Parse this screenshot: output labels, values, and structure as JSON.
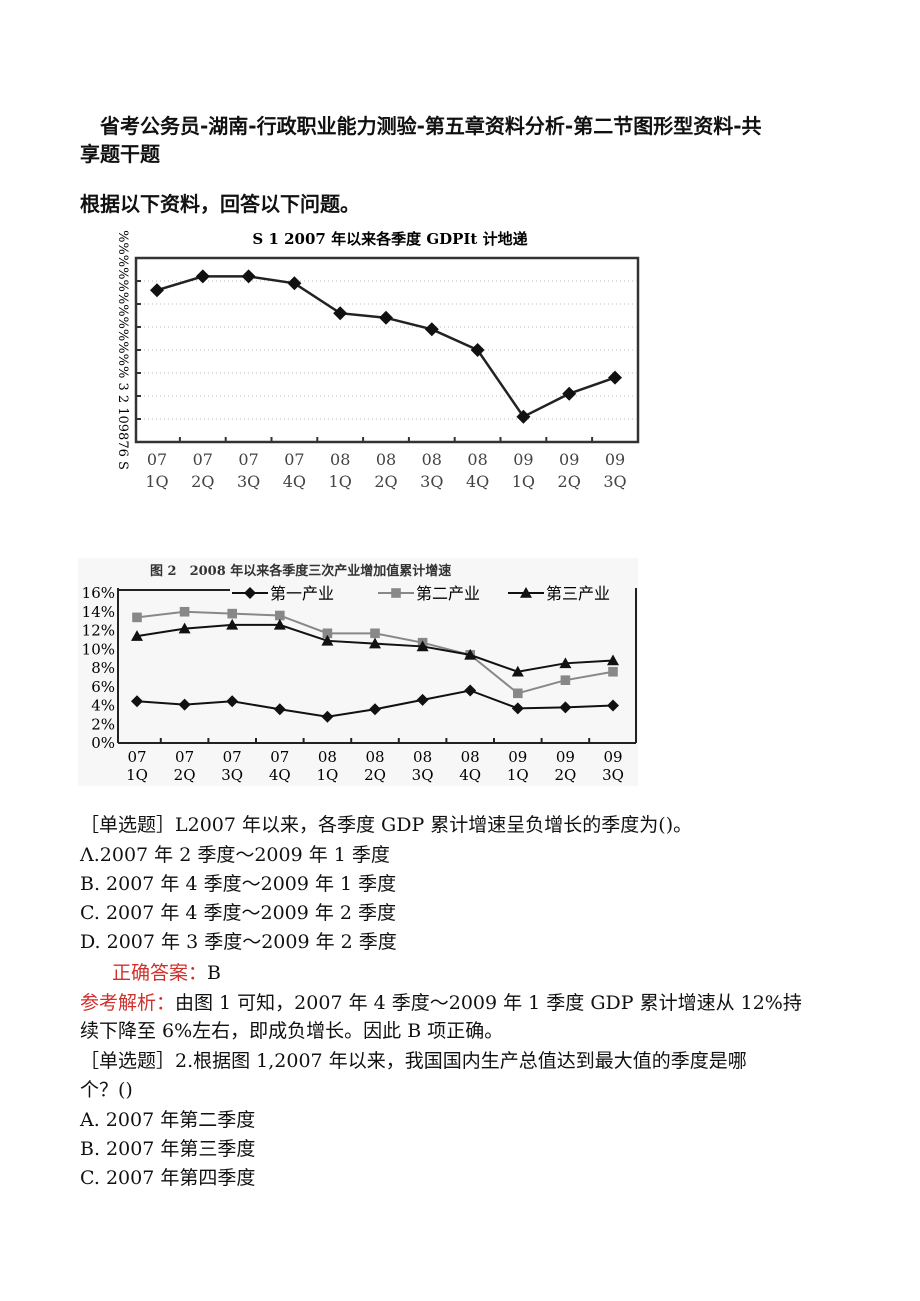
{
  "header": {
    "title_line1": "省考公务员-湖南-行政职业能力测验-第五章资料分析-第二节图形型资料-共",
    "title_line2": "享题干题",
    "intro": "根据以下资料，回答以下问题。"
  },
  "chart_data": [
    {
      "type": "line",
      "title": "S 1 2007 年以来各季度 GDPIt 计地递",
      "ylabel": "%%%%%%%%%%%% 3 2 109876 S",
      "categories": [
        [
          "07",
          "1Q"
        ],
        [
          "07",
          "2Q"
        ],
        [
          "07",
          "3Q"
        ],
        [
          "07",
          "4Q"
        ],
        [
          "08",
          "1Q"
        ],
        [
          "08",
          "2Q"
        ],
        [
          "08",
          "3Q"
        ],
        [
          "08",
          "4Q"
        ],
        [
          "09",
          "1Q"
        ],
        [
          "09",
          "2Q"
        ],
        [
          "09",
          "3Q"
        ]
      ],
      "values": [
        11.6,
        12.2,
        12.2,
        11.9,
        10.6,
        10.4,
        9.9,
        9.0,
        6.1,
        7.1,
        7.8
      ],
      "ylim": [
        5,
        13
      ],
      "grid": "horizontal dotted",
      "marker": "diamond",
      "color": "#111111"
    },
    {
      "type": "line",
      "title": "图 2　2008 年以来各季度三次产业增加值累计增速",
      "categories": [
        [
          "07",
          "1Q"
        ],
        [
          "07",
          "2Q"
        ],
        [
          "07",
          "3Q"
        ],
        [
          "07",
          "4Q"
        ],
        [
          "08",
          "1Q"
        ],
        [
          "08",
          "2Q"
        ],
        [
          "08",
          "3Q"
        ],
        [
          "08",
          "4Q"
        ],
        [
          "09",
          "1Q"
        ],
        [
          "09",
          "2Q"
        ],
        [
          "09",
          "3Q"
        ]
      ],
      "yticks": [
        "0%",
        "2%",
        "4%",
        "6%",
        "8%",
        "10%",
        "12%",
        "14%",
        "16%"
      ],
      "ylim": [
        0,
        16
      ],
      "legend": "top-right",
      "series": [
        {
          "name": "第一产业",
          "marker": "diamond",
          "color": "#111111",
          "values": [
            4.45,
            4.1,
            4.45,
            3.6,
            2.8,
            3.6,
            4.6,
            5.6,
            3.7,
            3.8,
            4.0
          ]
        },
        {
          "name": "第二产业",
          "marker": "square",
          "color": "#888888",
          "values": [
            13.4,
            14.0,
            13.8,
            13.6,
            11.7,
            11.7,
            10.7,
            9.4,
            5.3,
            6.7,
            7.6
          ]
        },
        {
          "name": "第三产业",
          "marker": "triangle",
          "color": "#111111",
          "values": [
            11.4,
            12.2,
            12.6,
            12.6,
            10.9,
            10.6,
            10.3,
            9.4,
            7.6,
            8.5,
            8.8
          ]
        }
      ]
    }
  ],
  "q1": {
    "stem": "［单选题］L2007 年以来，各季度 GDP 累计增速呈负增长的季度为()。",
    "options": [
      "Λ.2007 年 2 季度～2009 年 1 季度",
      "B. 2007 年 4 季度～2009 年 1 季度",
      "C. 2007 年 4 季度～2009 年 2 季度",
      "D. 2007 年 3 季度～2009 年 2 季度"
    ],
    "answer_label": "正确答案：",
    "answer": "B",
    "analysis_label": "参考解析：",
    "analysis_line1": "由图 1 可知，2007 年 4 季度～2009 年 1 季度 GDP 累计增速从 12%持",
    "analysis_line2": "续下降至 6%左右，即成负增长。因此 B 项正确。"
  },
  "q2": {
    "stem_line1": "［单选题］2.根据图 1,2007 年以来，我国国内生产总值达到最大值的季度是哪",
    "stem_line2": "个？()",
    "options": [
      "A. 2007 年第二季度",
      "B. 2007 年第三季度",
      "C. 2007 年第四季度"
    ]
  }
}
